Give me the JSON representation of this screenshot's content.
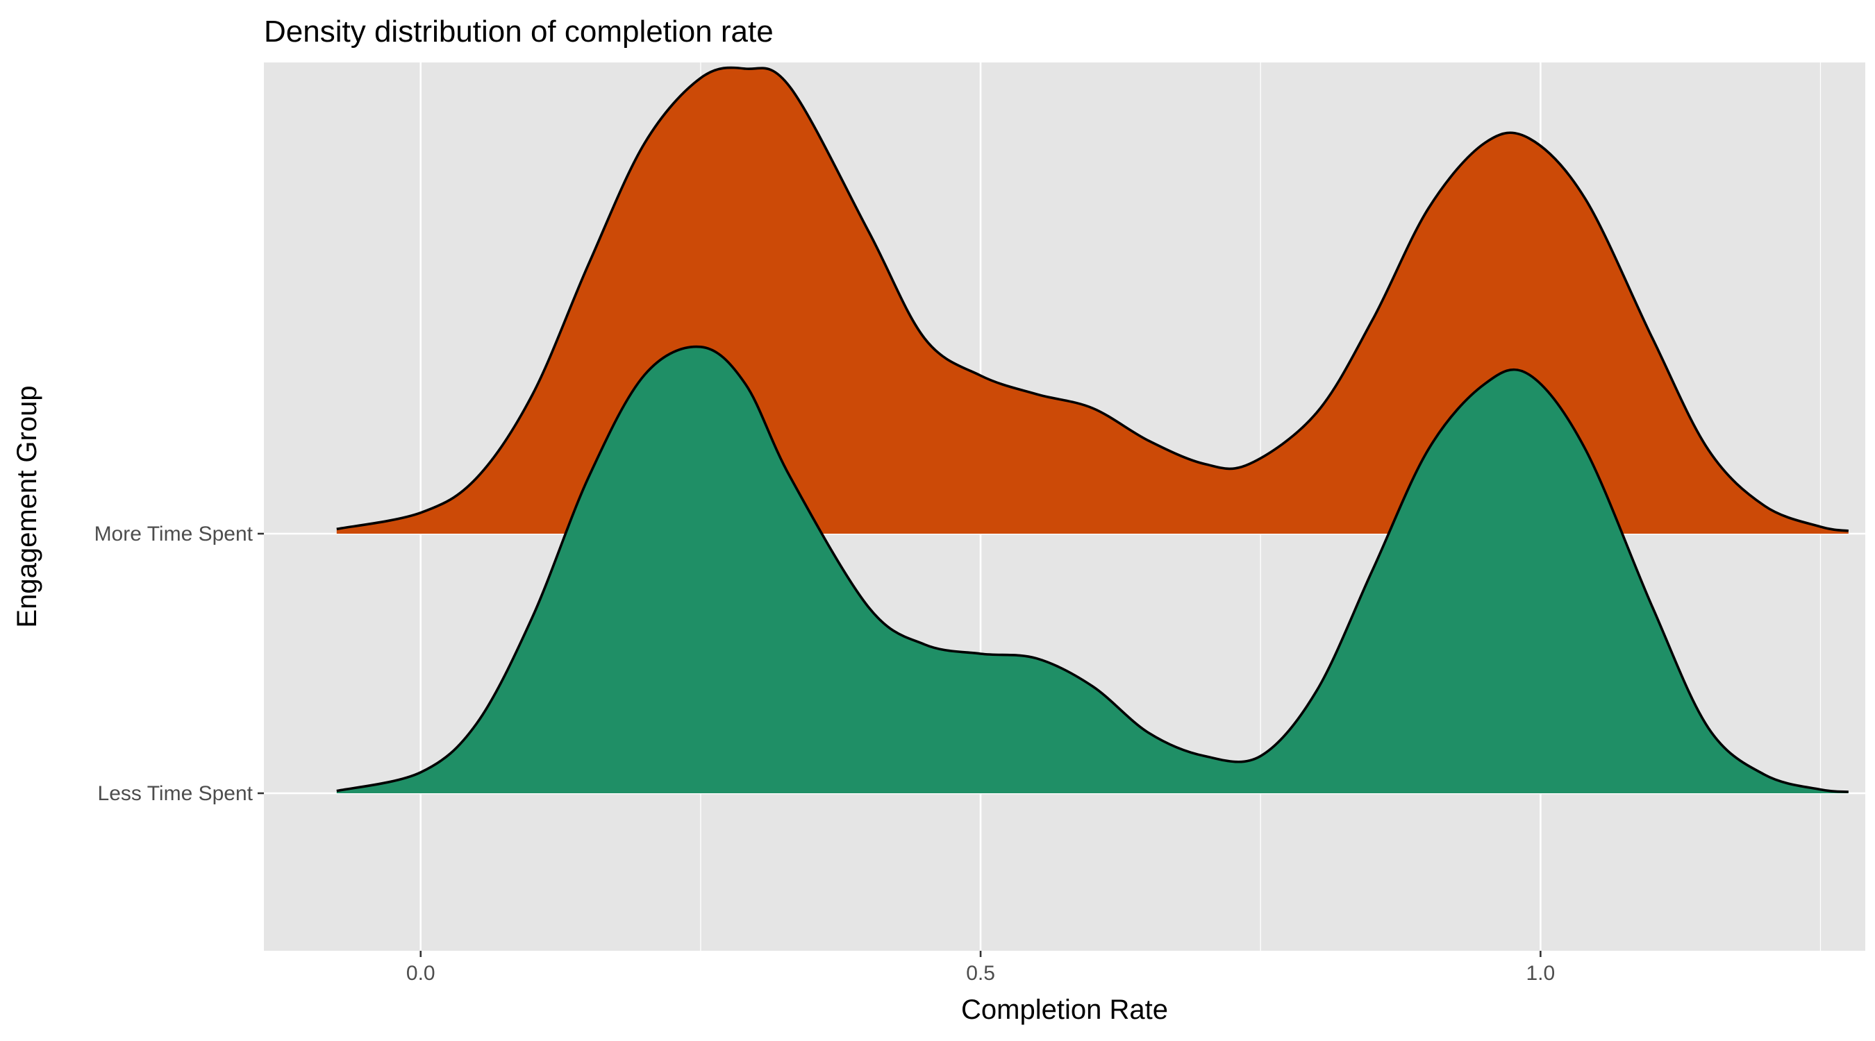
{
  "chart_data": {
    "type": "ridgeline",
    "title": "Density distribution of completion rate",
    "xlabel": "Completion Rate",
    "ylabel": "Engagement Group",
    "xlim": [
      -0.14,
      1.29
    ],
    "x_ticks": [
      0.0,
      0.5,
      1.0
    ],
    "x_tick_labels": [
      "0.0",
      "0.5",
      "1.0"
    ],
    "categories": [
      "Less Time Spent",
      "More Time Spent"
    ],
    "grid": true,
    "background": "#e5e5e5",
    "series": [
      {
        "name": "More Time Spent",
        "color": "#cc4a07",
        "x": [
          -0.075,
          0.0,
          0.05,
          0.1,
          0.15,
          0.2,
          0.25,
          0.29,
          0.33,
          0.4,
          0.45,
          0.5,
          0.55,
          0.6,
          0.65,
          0.7,
          0.74,
          0.8,
          0.85,
          0.9,
          0.95,
          0.99,
          1.04,
          1.1,
          1.15,
          1.2,
          1.25,
          1.275
        ],
        "density": [
          0.01,
          0.045,
          0.12,
          0.3,
          0.58,
          0.84,
          0.98,
          1.0,
          0.96,
          0.65,
          0.42,
          0.34,
          0.3,
          0.27,
          0.2,
          0.15,
          0.15,
          0.26,
          0.46,
          0.7,
          0.84,
          0.85,
          0.72,
          0.42,
          0.18,
          0.06,
          0.015,
          0.006
        ]
      },
      {
        "name": "Less Time Spent",
        "color": "#1f8f66",
        "x": [
          -0.075,
          0.0,
          0.05,
          0.1,
          0.15,
          0.2,
          0.25,
          0.29,
          0.33,
          0.4,
          0.45,
          0.5,
          0.55,
          0.6,
          0.65,
          0.7,
          0.75,
          0.8,
          0.85,
          0.9,
          0.95,
          0.99,
          1.04,
          1.1,
          1.15,
          1.2,
          1.25,
          1.275
        ],
        "density": [
          0.005,
          0.045,
          0.15,
          0.38,
          0.68,
          0.9,
          0.96,
          0.88,
          0.68,
          0.4,
          0.32,
          0.3,
          0.29,
          0.23,
          0.13,
          0.08,
          0.08,
          0.22,
          0.48,
          0.74,
          0.88,
          0.9,
          0.74,
          0.4,
          0.14,
          0.04,
          0.008,
          0.003
        ]
      }
    ]
  }
}
